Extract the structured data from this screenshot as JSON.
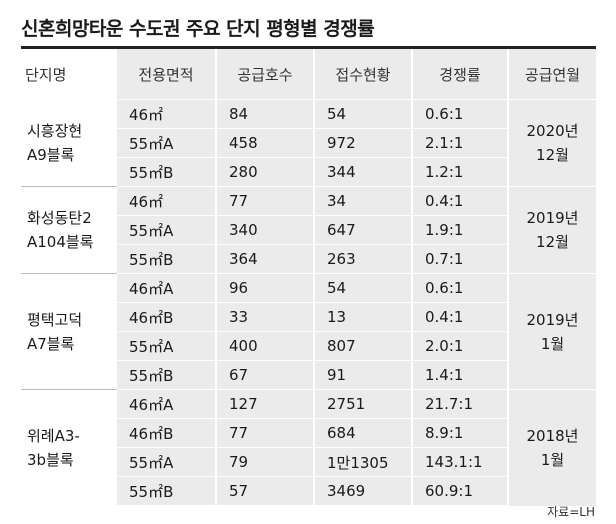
{
  "title": "신혼희망타운 수도권 주요 단지 평형별 경쟁률",
  "headers": {
    "complex": "단지명",
    "area": "전용면적",
    "supply": "공급호수",
    "applications": "접수현황",
    "ratio": "경쟁률",
    "month": "공급연월"
  },
  "groups": [
    {
      "complex_line1": "시흥장현",
      "complex_line2": "A9블록",
      "month_line1": "2020년",
      "month_line2": "12월",
      "rows": [
        {
          "area": "46㎡",
          "supply": "84",
          "applications": "54",
          "ratio": "0.6:1"
        },
        {
          "area": "55㎡A",
          "supply": "458",
          "applications": "972",
          "ratio": "2.1:1"
        },
        {
          "area": "55㎡B",
          "supply": "280",
          "applications": "344",
          "ratio": "1.2:1"
        }
      ]
    },
    {
      "complex_line1": "화성동탄2",
      "complex_line2": "A104블록",
      "month_line1": "2019년",
      "month_line2": "12월",
      "rows": [
        {
          "area": "46㎡",
          "supply": "77",
          "applications": "34",
          "ratio": "0.4:1"
        },
        {
          "area": "55㎡A",
          "supply": "340",
          "applications": "647",
          "ratio": "1.9:1"
        },
        {
          "area": "55㎡B",
          "supply": "364",
          "applications": "263",
          "ratio": "0.7:1"
        }
      ]
    },
    {
      "complex_line1": "평택고덕",
      "complex_line2": "A7블록",
      "month_line1": "2019년",
      "month_line2": "1월",
      "rows": [
        {
          "area": "46㎡A",
          "supply": "96",
          "applications": "54",
          "ratio": "0.6:1"
        },
        {
          "area": "46㎡B",
          "supply": "33",
          "applications": "13",
          "ratio": "0.4:1"
        },
        {
          "area": "55㎡A",
          "supply": "400",
          "applications": "807",
          "ratio": "2.0:1"
        },
        {
          "area": "55㎡B",
          "supply": "67",
          "applications": "91",
          "ratio": "1.4:1"
        }
      ]
    },
    {
      "complex_line1": "위례A3-",
      "complex_line2": "3b블록",
      "month_line1": "2018년",
      "month_line2": "1월",
      "rows": [
        {
          "area": "46㎡A",
          "supply": "127",
          "applications": "2751",
          "ratio": "21.7:1"
        },
        {
          "area": "46㎡B",
          "supply": "77",
          "applications": "684",
          "ratio": "8.9:1"
        },
        {
          "area": "55㎡A",
          "supply": "79",
          "applications": "1만1305",
          "ratio": "143.1:1"
        },
        {
          "area": "55㎡B",
          "supply": "57",
          "applications": "3469",
          "ratio": "60.9:1"
        }
      ]
    }
  ],
  "source": "자료=LH",
  "colors": {
    "cell_background": "#ebebeb",
    "title_rule": "#222222",
    "group_divider": "#bdbdbd"
  }
}
